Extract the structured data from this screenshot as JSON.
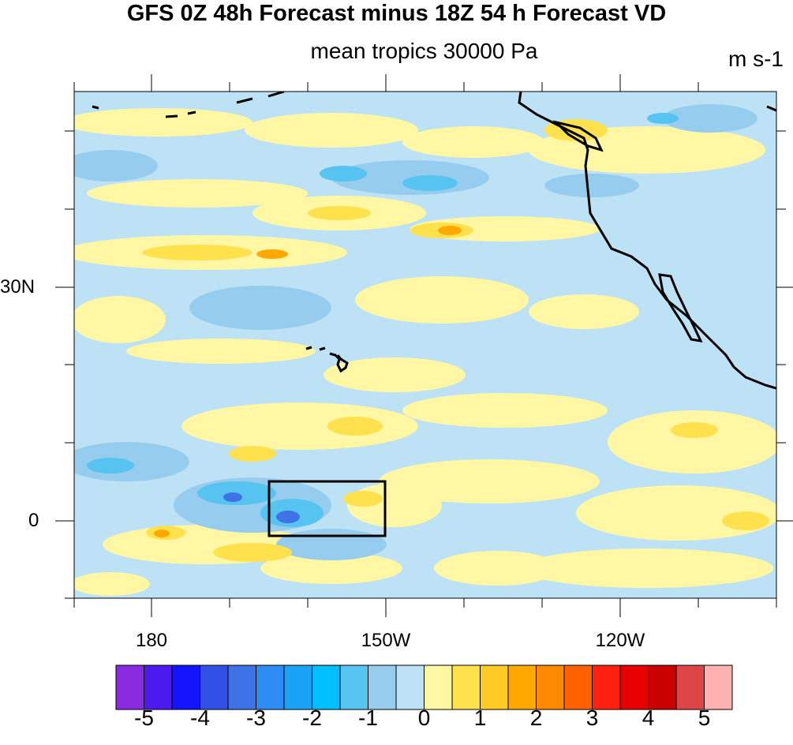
{
  "title": "GFS 0Z 48h Forecast minus 18Z 54 h Forecast VD",
  "subtitle": "mean tropics 30000 Pa",
  "units": "m s-1",
  "map": {
    "lat_labels": [
      "30N",
      "0"
    ],
    "lon_labels": [
      "180",
      "150W",
      "120W"
    ],
    "lon_range": [
      170,
      260
    ],
    "lat_range": [
      -10,
      55
    ],
    "box": {
      "lon": [
        195,
        210
      ],
      "lat": [
        -2,
        5
      ]
    }
  },
  "colorbar": {
    "colors": [
      "#8a2be2",
      "#4b1aef",
      "#1414ff",
      "#3050e6",
      "#3d73e6",
      "#2e8cf5",
      "#1aa3f5",
      "#00bfff",
      "#56c3f0",
      "#96cdee",
      "#bde2f5",
      "#fff7a3",
      "#ffe14d",
      "#ffc926",
      "#ffa800",
      "#ff8a00",
      "#ff6000",
      "#ff2010",
      "#e60000",
      "#c80000",
      "#dc4646",
      "#ffb0b0"
    ],
    "labels": [
      "-5",
      "-4",
      "-3",
      "-2",
      "-1",
      "0",
      "1",
      "2",
      "3",
      "4",
      "5"
    ]
  },
  "colors": {
    "background_light_blue": "#bde2f5",
    "light_yellow": "#fff7a3",
    "outline": "#000000"
  }
}
